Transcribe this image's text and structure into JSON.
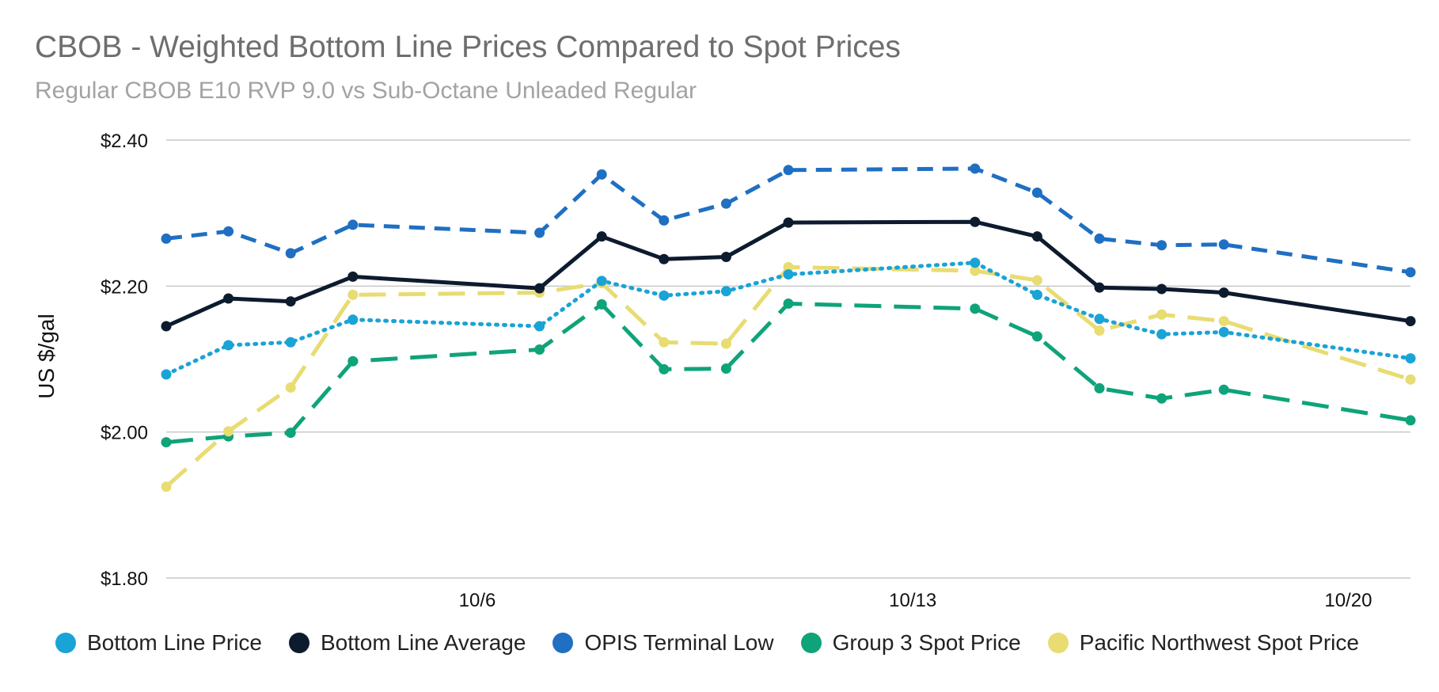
{
  "chart_data": {
    "type": "line",
    "title": "CBOB - Weighted Bottom Line Prices Compared to Spot Prices",
    "subtitle": "Regular CBOB E10 RVP 9.0 vs Sub-Octane Unleaded Regular",
    "ylabel": "US $/gal",
    "xlabel": "",
    "ylim": [
      1.8,
      2.4
    ],
    "yticks": [
      1.8,
      2.0,
      2.2,
      2.4
    ],
    "ytick_labels": [
      "$1.80",
      "$2.00",
      "$2.20",
      "$2.40"
    ],
    "xlim": [
      1,
      21
    ],
    "xticks": [
      6,
      13,
      20
    ],
    "xtick_labels": [
      "10/6",
      "10/13",
      "10/20"
    ],
    "x": [
      1,
      2,
      3,
      4,
      7,
      8,
      9,
      10,
      11,
      14,
      15,
      16,
      17,
      18,
      21
    ],
    "legend_position": "bottom",
    "grid": "horizontal",
    "series": [
      {
        "name": "Bottom Line Price",
        "color": "#1aa3d6",
        "dash": "dotted",
        "values": [
          2.079,
          2.119,
          2.123,
          2.154,
          2.145,
          2.207,
          2.187,
          2.193,
          2.216,
          2.232,
          2.188,
          2.155,
          2.134,
          2.137,
          2.101
        ]
      },
      {
        "name": "Bottom Line Average",
        "color": "#0d1b2e",
        "dash": "solid",
        "values": [
          2.145,
          2.183,
          2.179,
          2.213,
          2.197,
          2.268,
          2.237,
          2.24,
          2.287,
          2.288,
          2.268,
          2.198,
          2.196,
          2.191,
          2.152
        ]
      },
      {
        "name": "OPIS Terminal Low",
        "color": "#1f6fc2",
        "dash": "dashed",
        "values": [
          2.265,
          2.275,
          2.245,
          2.284,
          2.273,
          2.353,
          2.29,
          2.313,
          2.359,
          2.361,
          2.328,
          2.265,
          2.256,
          2.257,
          2.219
        ]
      },
      {
        "name": "Group 3 Spot Price",
        "color": "#0fa37a",
        "dash": "longdash",
        "values": [
          1.986,
          1.994,
          1.999,
          2.097,
          2.113,
          2.175,
          2.086,
          2.087,
          2.176,
          2.169,
          2.131,
          2.06,
          2.046,
          2.058,
          2.016
        ]
      },
      {
        "name": "Pacific Northwest Spot Price",
        "color": "#e8dc72",
        "dash": "longdash",
        "values": [
          1.925,
          2.001,
          2.061,
          2.188,
          2.191,
          2.204,
          2.123,
          2.121,
          2.226,
          2.221,
          2.208,
          2.139,
          2.161,
          2.152,
          2.072
        ]
      }
    ]
  }
}
